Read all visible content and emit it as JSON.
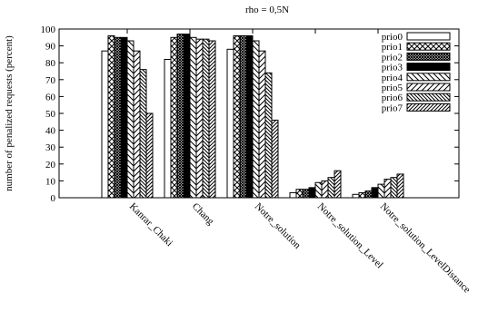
{
  "chart_data": {
    "type": "bar",
    "title": "rho = 0,5N",
    "xlabel": "",
    "ylabel": "number of penalized requests (percent)",
    "ylim": [
      0,
      100
    ],
    "yticks": [
      0,
      10,
      20,
      30,
      40,
      50,
      60,
      70,
      80,
      90,
      100
    ],
    "grid": false,
    "legend_position": "top-right",
    "categories": [
      "Kanrar_Chaki",
      "Chang",
      "Notre_solution",
      "Notre_solution_Level",
      "Notre_solution_LevelDistance"
    ],
    "series": [
      {
        "name": "prio0",
        "values": [
          87,
          82,
          88,
          3,
          2
        ]
      },
      {
        "name": "prio1",
        "values": [
          96,
          95,
          96,
          5,
          3
        ]
      },
      {
        "name": "prio2",
        "values": [
          95,
          97,
          96,
          5,
          4
        ]
      },
      {
        "name": "prio3",
        "values": [
          95,
          97,
          96,
          6,
          6
        ]
      },
      {
        "name": "prio4",
        "values": [
          93,
          95,
          93,
          9,
          8
        ]
      },
      {
        "name": "prio5",
        "values": [
          87,
          94,
          87,
          10,
          11
        ]
      },
      {
        "name": "prio6",
        "values": [
          76,
          94,
          74,
          12,
          12
        ]
      },
      {
        "name": "prio7",
        "values": [
          50,
          93,
          46,
          16,
          14
        ]
      }
    ],
    "patterns": [
      "blank",
      "crosshatch",
      "dense-check",
      "solid",
      "backslash",
      "slash",
      "backslash-dense",
      "slash-dense"
    ]
  }
}
